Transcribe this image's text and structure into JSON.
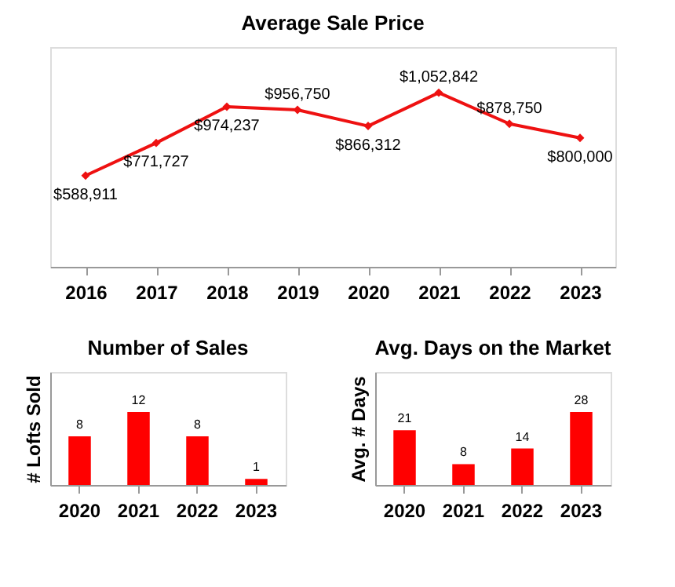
{
  "chart_data": [
    {
      "type": "line",
      "title": "Average Sale Price",
      "categories": [
        "2016",
        "2017",
        "2018",
        "2019",
        "2020",
        "2021",
        "2022",
        "2023"
      ],
      "series": [
        {
          "color": "#ee1111",
          "values": [
            588911,
            771727,
            974237,
            956750,
            866312,
            1052842,
            878750,
            800000
          ],
          "value_labels": [
            "$588,911",
            "$771,727",
            "$974,237",
            "$956,750",
            "$866,312",
            "$1,052,842",
            "$878,750",
            "$800,000"
          ]
        }
      ],
      "marker": "diamond",
      "line_style": "solid",
      "grid": false,
      "tick_labels": "x"
    },
    {
      "type": "bar",
      "title": "Number of Sales",
      "ylabel": "# Lofts Sold",
      "categories": [
        "2020",
        "2021",
        "2022",
        "2023"
      ],
      "values": [
        8,
        12,
        8,
        1
      ],
      "color": "#ff0000",
      "data_labels": true,
      "grid": false,
      "tick_labels": "x"
    },
    {
      "type": "bar",
      "title": "Avg. Days on the Market",
      "ylabel": "Avg. # Days",
      "categories": [
        "2020",
        "2021",
        "2022",
        "2023"
      ],
      "values": [
        21,
        8,
        14,
        28
      ],
      "color": "#ff0000",
      "data_labels": true,
      "grid": false,
      "tick_labels": "x"
    }
  ]
}
